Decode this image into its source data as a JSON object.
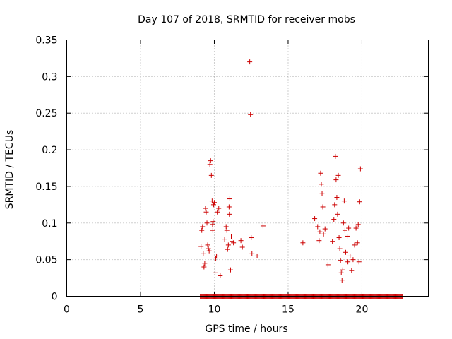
{
  "chart_data": {
    "type": "scatter",
    "title": "Day 107 of 2018, SRMTID for receiver mobs",
    "xlabel": "GPS time / hours",
    "ylabel": "SRMTID / TECUs",
    "xlim": [
      0,
      24.5
    ],
    "ylim": [
      0,
      0.35
    ],
    "x_ticks": [
      0,
      5,
      10,
      15,
      20
    ],
    "y_ticks": [
      0,
      0.05,
      0.1,
      0.15,
      0.2,
      0.25,
      0.3,
      0.35
    ],
    "x_tick_labels": [
      "0",
      "5",
      "10",
      "15",
      "20"
    ],
    "y_tick_labels": [
      "0",
      "0.05",
      "0.1",
      "0.15",
      "0.2",
      "0.25",
      "0.3",
      "0.35"
    ],
    "grid": true,
    "marker": "plus",
    "series": [
      {
        "name": "SRMTID",
        "color": "#cc0000",
        "zero_band": [
          9.05,
          22.75
        ],
        "x": [
          9.1,
          9.15,
          9.2,
          9.25,
          9.3,
          9.35,
          9.4,
          9.45,
          9.5,
          9.55,
          9.6,
          9.65,
          9.7,
          9.75,
          9.8,
          9.85,
          9.88,
          9.9,
          9.92,
          9.95,
          10.0,
          10.05,
          10.1,
          10.15,
          10.2,
          10.3,
          10.4,
          10.7,
          10.8,
          10.85,
          10.9,
          10.95,
          11.0,
          11.02,
          11.05,
          11.1,
          11.15,
          11.2,
          11.3,
          11.8,
          11.9,
          12.4,
          12.45,
          12.5,
          12.55,
          12.9,
          13.3,
          16.0,
          16.8,
          17.0,
          17.1,
          17.15,
          17.2,
          17.25,
          17.3,
          17.35,
          17.4,
          17.5,
          17.7,
          18.0,
          18.1,
          18.15,
          18.2,
          18.25,
          18.3,
          18.35,
          18.4,
          18.45,
          18.5,
          18.55,
          18.6,
          18.65,
          18.7,
          18.75,
          18.8,
          18.85,
          18.9,
          19.0,
          19.05,
          19.1,
          19.2,
          19.3,
          19.4,
          19.5,
          19.6,
          19.7,
          19.75,
          19.8,
          19.85,
          19.9
        ],
        "y": [
          0.068,
          0.09,
          0.095,
          0.058,
          0.04,
          0.045,
          0.12,
          0.115,
          0.1,
          0.07,
          0.065,
          0.062,
          0.18,
          0.185,
          0.165,
          0.13,
          0.098,
          0.09,
          0.102,
          0.125,
          0.128,
          0.032,
          0.052,
          0.055,
          0.115,
          0.12,
          0.028,
          0.078,
          0.095,
          0.09,
          0.064,
          0.07,
          0.122,
          0.112,
          0.133,
          0.036,
          0.081,
          0.075,
          0.073,
          0.076,
          0.067,
          0.32,
          0.248,
          0.08,
          0.058,
          0.055,
          0.096,
          0.073,
          0.106,
          0.095,
          0.076,
          0.088,
          0.168,
          0.153,
          0.14,
          0.122,
          0.085,
          0.092,
          0.043,
          0.075,
          0.105,
          0.125,
          0.191,
          0.159,
          0.135,
          0.112,
          0.165,
          0.08,
          0.065,
          0.049,
          0.032,
          0.022,
          0.036,
          0.1,
          0.13,
          0.09,
          0.06,
          0.082,
          0.047,
          0.093,
          0.055,
          0.035,
          0.05,
          0.07,
          0.093,
          0.073,
          0.098,
          0.047,
          0.129,
          0.174
        ]
      }
    ]
  }
}
